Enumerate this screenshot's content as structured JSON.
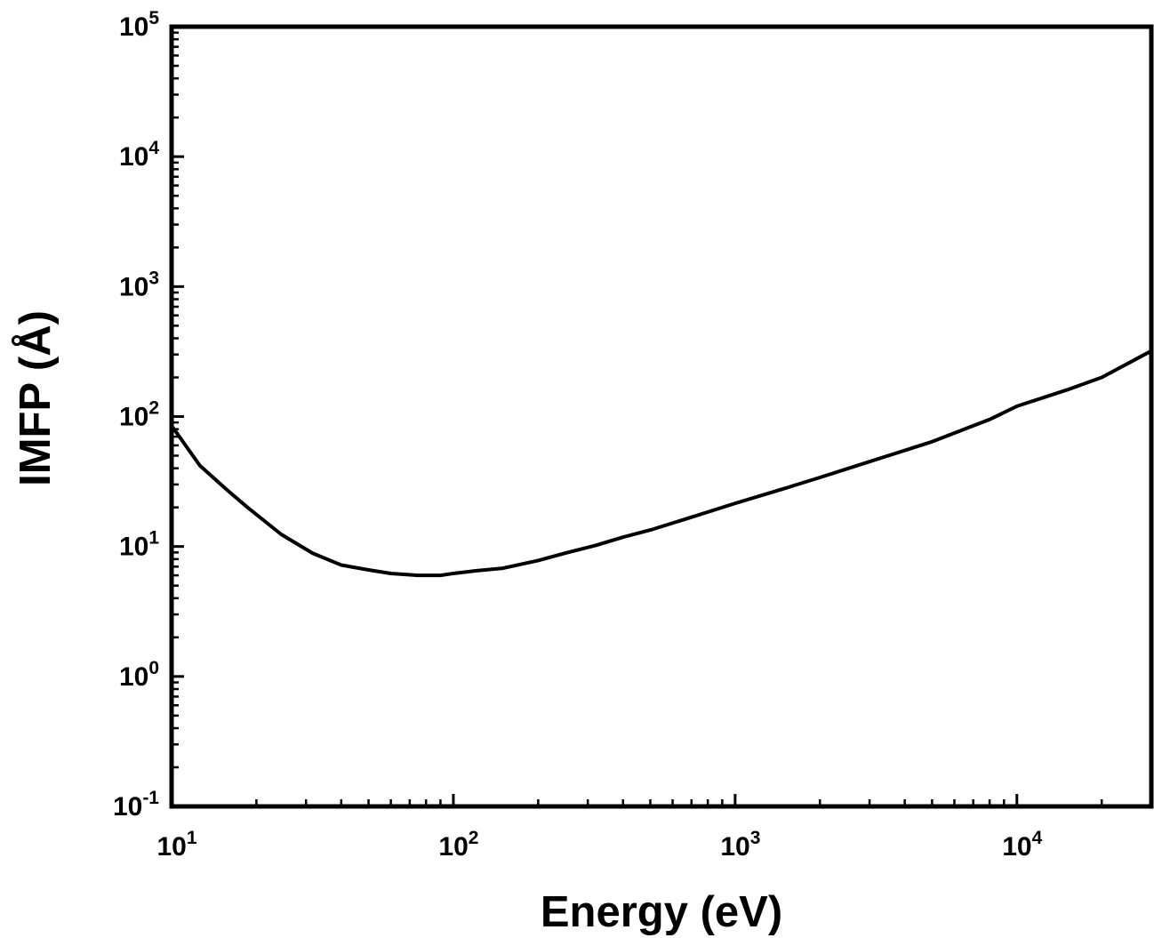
{
  "chart_data": {
    "type": "line",
    "xlabel": "Energy (eV)",
    "ylabel": "IMFP (Å)",
    "xscale": "log",
    "yscale": "log",
    "xlim": [
      10,
      30000
    ],
    "ylim": [
      0.1,
      100000
    ],
    "grid": false,
    "line_color": "#000000",
    "x_ticks": [
      {
        "value": 10,
        "base": "10",
        "exp": "1"
      },
      {
        "value": 100,
        "base": "10",
        "exp": "2"
      },
      {
        "value": 1000,
        "base": "10",
        "exp": "3"
      },
      {
        "value": 10000,
        "base": "10",
        "exp": "4"
      }
    ],
    "y_ticks": [
      {
        "value": 0.1,
        "base": "10",
        "exp": "-1"
      },
      {
        "value": 1,
        "base": "10",
        "exp": "0"
      },
      {
        "value": 10,
        "base": "10",
        "exp": "1"
      },
      {
        "value": 100,
        "base": "10",
        "exp": "2"
      },
      {
        "value": 1000,
        "base": "10",
        "exp": "3"
      },
      {
        "value": 10000,
        "base": "10",
        "exp": "4"
      },
      {
        "value": 100000,
        "base": "10",
        "exp": "5"
      }
    ],
    "series": [
      {
        "x": [
          10,
          12.6,
          15.8,
          18.6,
          24.5,
          31.6,
          40,
          50,
          60,
          75,
          90,
          100,
          120,
          150,
          200,
          250,
          320,
          400,
          500,
          700,
          1000,
          1500,
          2000,
          3000,
          5000,
          8000,
          10000,
          15000,
          20000,
          30000
        ],
        "y": [
          85,
          42,
          27,
          20,
          12.4,
          8.9,
          7.2,
          6.6,
          6.2,
          6.0,
          6.0,
          6.2,
          6.5,
          6.8,
          7.8,
          8.9,
          10.2,
          11.8,
          13.4,
          16.8,
          21.5,
          28,
          34,
          45,
          64,
          95,
          120,
          160,
          200,
          320
        ]
      }
    ]
  }
}
